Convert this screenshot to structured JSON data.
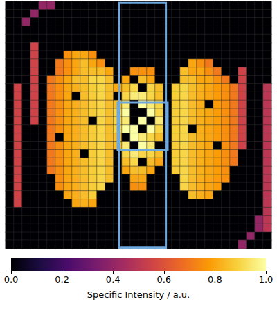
{
  "chart_data": {
    "type": "heatmap",
    "tick_labels": false,
    "cells": [
      [
        0,
        0,
        0,
        0,
        0.4,
        0.4,
        0,
        0,
        0,
        0,
        0,
        0,
        0,
        0,
        0,
        0,
        0,
        0,
        0,
        0,
        0,
        0,
        0,
        0,
        0,
        0,
        0,
        0,
        0,
        0,
        0,
        0
      ],
      [
        0,
        0,
        0,
        0.4,
        0,
        0,
        0,
        0,
        0,
        0,
        0,
        0,
        0,
        0,
        0,
        0,
        0,
        0,
        0,
        0,
        0,
        0,
        0,
        0,
        0,
        0,
        0,
        0,
        0,
        0,
        0,
        0
      ],
      [
        0,
        0,
        0.4,
        0,
        0,
        0,
        0,
        0,
        0,
        0,
        0,
        0,
        0,
        0,
        0,
        0,
        0,
        0,
        0,
        0,
        0,
        0,
        0,
        0,
        0,
        0,
        0,
        0,
        0,
        0,
        0,
        0
      ],
      [
        0,
        0,
        0,
        0,
        0,
        0,
        0,
        0,
        0,
        0,
        0,
        0,
        0,
        0,
        0,
        0,
        0,
        0,
        0,
        0,
        0,
        0,
        0,
        0,
        0,
        0,
        0,
        0,
        0,
        0,
        0,
        0
      ],
      [
        0,
        0,
        0,
        0,
        0,
        0,
        0,
        0,
        0,
        0,
        0,
        0,
        0,
        0,
        0,
        0,
        0,
        0,
        0,
        0,
        0,
        0,
        0,
        0,
        0,
        0,
        0,
        0,
        0,
        0,
        0,
        0
      ],
      [
        0,
        0,
        0,
        0.55,
        0,
        0,
        0,
        0,
        0,
        0,
        0,
        0,
        0,
        0,
        0,
        0,
        0,
        0,
        0,
        0,
        0,
        0,
        0,
        0,
        0,
        0,
        0,
        0,
        0,
        0,
        0,
        0
      ],
      [
        0,
        0,
        0,
        0.55,
        0,
        0,
        0,
        0.75,
        0.8,
        0.8,
        0.75,
        0,
        0,
        0,
        0,
        0,
        0,
        0,
        0,
        0,
        0,
        0,
        0,
        0,
        0,
        0,
        0,
        0,
        0,
        0,
        0,
        0
      ],
      [
        0,
        0,
        0,
        0.55,
        0,
        0,
        0.7,
        0.75,
        0.8,
        0.85,
        0.8,
        0.75,
        0,
        0,
        0,
        0,
        0,
        0,
        0,
        0,
        0,
        0,
        0.8,
        0.75,
        0.7,
        0,
        0,
        0,
        0,
        0,
        0,
        0
      ],
      [
        0,
        0,
        0,
        0.55,
        0,
        0,
        0.7,
        0.75,
        0.8,
        0.85,
        0.85,
        0.85,
        0.8,
        0,
        0,
        0.75,
        0.75,
        0.75,
        0,
        0,
        0,
        0.85,
        0.8,
        0.8,
        0.75,
        0.7,
        0,
        0,
        0.55,
        0,
        0,
        0
      ],
      [
        0,
        0,
        0,
        0.55,
        0,
        0.7,
        0.75,
        0.8,
        0.85,
        0.85,
        0.9,
        0.9,
        0.85,
        0,
        0.8,
        0,
        0.85,
        0.8,
        0,
        0,
        0,
        0.85,
        0.85,
        0.8,
        0.8,
        0.75,
        0.7,
        0,
        0.55,
        0,
        0,
        0
      ],
      [
        0,
        0.55,
        0,
        0.55,
        0,
        0.7,
        0.75,
        0.8,
        0.82,
        0.85,
        0.88,
        0.9,
        0.85,
        0.8,
        0.85,
        0.9,
        0,
        0.9,
        0.85,
        0,
        0.88,
        0.9,
        0.85,
        0.82,
        0.8,
        0.78,
        0.75,
        0.7,
        0.55,
        0,
        0,
        0.5
      ],
      [
        0,
        0.55,
        0,
        0.55,
        0,
        0.7,
        0.75,
        0.8,
        0,
        0.85,
        0.88,
        0.9,
        0.85,
        0,
        0.9,
        0.95,
        0.95,
        0.9,
        0.85,
        0,
        0.88,
        0.9,
        0.85,
        0.82,
        0.8,
        0.78,
        0.75,
        0.7,
        0.55,
        0,
        0,
        0.5
      ],
      [
        0,
        0.55,
        0,
        0.55,
        0,
        0.7,
        0.75,
        0.8,
        0.82,
        0.85,
        0.88,
        0.9,
        0.85,
        0.85,
        0.95,
        0,
        1,
        0.95,
        0.9,
        0,
        0.88,
        0.9,
        0.85,
        0.82,
        0,
        0.78,
        0.75,
        0.7,
        0.55,
        0,
        0,
        0.5
      ],
      [
        0,
        0.55,
        0,
        0.55,
        0,
        0.7,
        0.75,
        0.8,
        0.82,
        0.85,
        0.88,
        0.9,
        0.85,
        0.9,
        1,
        0,
        0,
        1,
        0.9,
        0,
        0.88,
        0.9,
        0.85,
        0.82,
        0.8,
        0.78,
        0.75,
        0.7,
        0.55,
        0,
        0,
        0.5
      ],
      [
        0,
        0.55,
        0,
        0.55,
        0,
        0.7,
        0.75,
        0.8,
        0.82,
        0.85,
        0,
        0.9,
        0.85,
        0.9,
        0.95,
        0,
        1,
        0,
        0.95,
        0,
        0.88,
        0.9,
        0.85,
        0.82,
        0.8,
        0.78,
        0.75,
        0.7,
        0.55,
        0,
        0,
        0.5
      ],
      [
        0,
        0.55,
        0,
        0,
        0,
        0.7,
        0.75,
        0.8,
        0.82,
        0.85,
        0.88,
        0.9,
        0.85,
        0.9,
        1,
        1,
        0,
        1,
        0.9,
        0,
        0.88,
        0.9,
        0,
        0.82,
        0.8,
        0.78,
        0.75,
        0.7,
        0.55,
        0,
        0,
        0.5
      ],
      [
        0,
        0.55,
        0,
        0,
        0,
        0.7,
        0,
        0.8,
        0.82,
        0.85,
        0.88,
        0.9,
        0.85,
        0.85,
        0,
        1,
        0.95,
        0.9,
        0.85,
        0,
        0.88,
        0.9,
        0.85,
        0.82,
        0.8,
        0.78,
        0.75,
        0.7,
        0.55,
        0,
        0,
        0.5
      ],
      [
        0,
        0.55,
        0,
        0,
        0,
        0.7,
        0.75,
        0.8,
        0.82,
        0.85,
        0.88,
        0.9,
        0.85,
        0.85,
        0.95,
        0,
        1,
        0.95,
        0,
        0,
        0.88,
        0.9,
        0.85,
        0.82,
        0.8,
        0,
        0.75,
        0.7,
        0.55,
        0,
        0,
        0.5
      ],
      [
        0,
        0.55,
        0,
        0,
        0,
        0.7,
        0.75,
        0.8,
        0.82,
        0,
        0.88,
        0.9,
        0.85,
        0,
        0.9,
        0.95,
        0.9,
        0.9,
        0.85,
        0,
        0.88,
        0.9,
        0.85,
        0.82,
        0.8,
        0.78,
        0.75,
        0.7,
        0,
        0,
        0,
        0.5
      ],
      [
        0,
        0.55,
        0,
        0,
        0,
        0.7,
        0.75,
        0.8,
        0.82,
        0.85,
        0.88,
        0.9,
        0.85,
        0,
        0.85,
        0.9,
        0,
        0.85,
        0.8,
        0,
        0.88,
        0.9,
        0.85,
        0.82,
        0.8,
        0.78,
        0.75,
        0.7,
        0,
        0,
        0,
        0.5
      ],
      [
        0,
        0.55,
        0,
        0,
        0,
        0.7,
        0.75,
        0.8,
        0.82,
        0.85,
        0.88,
        0.9,
        0.85,
        0,
        0.8,
        0.85,
        0.85,
        0.8,
        0,
        0,
        0.88,
        0.9,
        0.85,
        0.82,
        0.8,
        0.78,
        0.75,
        0,
        0,
        0,
        0,
        0.5
      ],
      [
        0,
        0.55,
        0,
        0,
        0,
        0,
        0.75,
        0.8,
        0.82,
        0.85,
        0.88,
        0.9,
        0.85,
        0,
        0,
        0.8,
        0.8,
        0,
        0,
        0,
        0,
        0.9,
        0.85,
        0.82,
        0.8,
        0.78,
        0.75,
        0,
        0,
        0,
        0,
        0.5
      ],
      [
        0,
        0.55,
        0,
        0,
        0,
        0,
        0.75,
        0.8,
        0.82,
        0.85,
        0.88,
        0.9,
        0,
        0,
        0,
        0.75,
        0.75,
        0,
        0,
        0,
        0,
        0.9,
        0.85,
        0.82,
        0.8,
        0.78,
        0,
        0,
        0,
        0,
        0,
        0.5
      ],
      [
        0,
        0.55,
        0,
        0,
        0,
        0,
        0,
        0.8,
        0.82,
        0.85,
        0.88,
        0,
        0,
        0,
        0,
        0,
        0,
        0,
        0,
        0,
        0,
        0,
        0.85,
        0.82,
        0.8,
        0,
        0,
        0,
        0,
        0,
        0,
        0.5
      ],
      [
        0,
        0.55,
        0,
        0,
        0,
        0,
        0,
        0,
        0.8,
        0.82,
        0.8,
        0,
        0,
        0,
        0,
        0,
        0,
        0,
        0,
        0,
        0,
        0,
        0,
        0,
        0,
        0,
        0,
        0,
        0,
        0,
        0,
        0.5
      ],
      [
        0,
        0,
        0,
        0,
        0,
        0,
        0,
        0,
        0,
        0,
        0,
        0,
        0,
        0,
        0,
        0,
        0,
        0,
        0,
        0,
        0,
        0,
        0,
        0,
        0,
        0,
        0,
        0,
        0,
        0,
        0,
        0.5
      ],
      [
        0,
        0,
        0,
        0,
        0,
        0,
        0,
        0,
        0,
        0,
        0,
        0,
        0,
        0,
        0,
        0,
        0,
        0,
        0,
        0,
        0,
        0,
        0,
        0,
        0,
        0,
        0,
        0,
        0,
        0,
        0.4,
        0.5
      ],
      [
        0,
        0,
        0,
        0,
        0,
        0,
        0,
        0,
        0,
        0,
        0,
        0,
        0,
        0,
        0,
        0,
        0,
        0,
        0,
        0,
        0,
        0,
        0,
        0,
        0,
        0,
        0,
        0,
        0,
        0,
        0.4,
        0.5
      ],
      [
        0,
        0,
        0,
        0,
        0,
        0,
        0,
        0,
        0,
        0,
        0,
        0,
        0,
        0,
        0,
        0,
        0,
        0,
        0,
        0,
        0,
        0,
        0,
        0,
        0,
        0,
        0,
        0,
        0,
        0.4,
        0,
        0
      ],
      [
        0,
        0,
        0,
        0,
        0,
        0,
        0,
        0,
        0,
        0,
        0,
        0,
        0,
        0,
        0,
        0,
        0,
        0,
        0,
        0,
        0,
        0,
        0,
        0,
        0,
        0,
        0,
        0,
        0.4,
        0,
        0,
        0
      ]
    ],
    "colorbar_lim": [
      0,
      1
    ],
    "colorbar_ticks": [
      {
        "value": 0,
        "label": "0.0"
      },
      {
        "value": 0.2,
        "label": "0.2"
      },
      {
        "value": 0.4,
        "label": "0.4"
      },
      {
        "value": 0.6,
        "label": "0.6"
      },
      {
        "value": 0.8,
        "label": "0.8"
      },
      {
        "value": 1,
        "label": "1.0"
      }
    ],
    "colorbar_label": "Specific Intensity / a.u.",
    "boxes": {
      "color": "#6fa8dc",
      "rects": [
        [
          13.7,
          0.2,
          19.3,
          29.9
        ],
        [
          13.5,
          12.3,
          19.5,
          18.0
        ]
      ]
    }
  }
}
